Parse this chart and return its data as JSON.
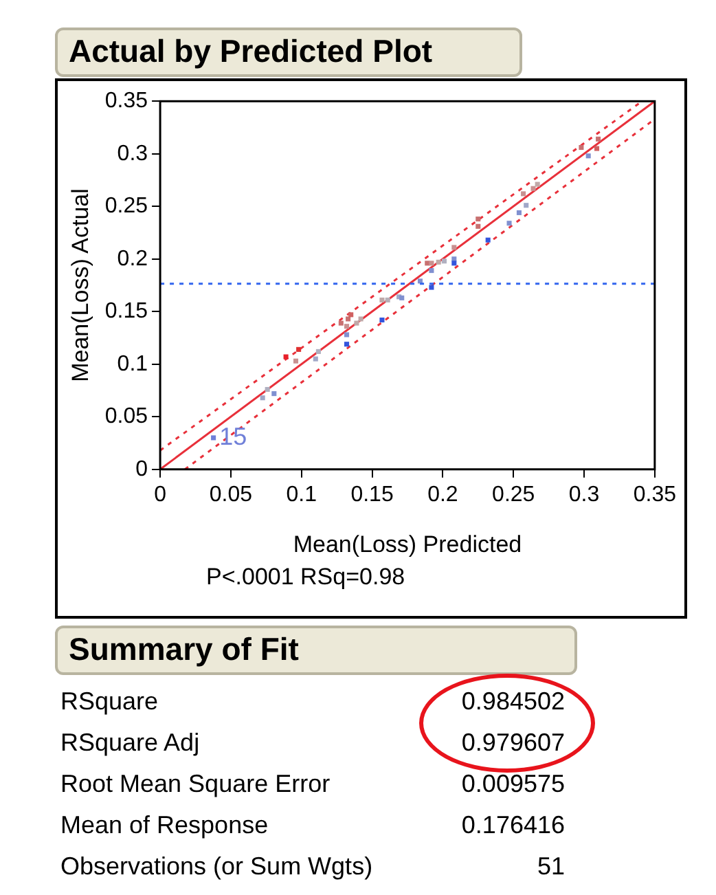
{
  "chart_data": {
    "type": "scatter",
    "title": "Actual by Predicted Plot",
    "xlabel": "Mean(Loss) Predicted",
    "ylabel": "Mean(Loss) Actual",
    "xlim": [
      0,
      0.35
    ],
    "ylim": [
      0,
      0.35
    ],
    "xticks": [
      0,
      0.05,
      0.1,
      0.15,
      0.2,
      0.25,
      0.3,
      0.35
    ],
    "yticks": [
      0,
      0.05,
      0.1,
      0.15,
      0.2,
      0.25,
      0.3,
      0.35
    ],
    "grid": false,
    "legend": false,
    "marker": "square",
    "series": [
      {
        "type": "scatter",
        "x": [
          0.0377,
          0.0725,
          0.0759,
          0.0806,
          0.089,
          0.096,
          0.098,
          0.11,
          0.112,
          0.128,
          0.132,
          0.133,
          0.135,
          0.132,
          0.132,
          0.139,
          0.142,
          0.157,
          0.157,
          0.161,
          0.169,
          0.171,
          0.184,
          0.192,
          0.192,
          0.189,
          0.192,
          0.197,
          0.201,
          0.208,
          0.208,
          0.208,
          0.225,
          0.225,
          0.232,
          0.247,
          0.254,
          0.259,
          0.257,
          0.264,
          0.267,
          0.298,
          0.303,
          0.31,
          0.309
        ],
        "values": [
          0.03,
          0.068,
          0.076,
          0.072,
          0.107,
          0.103,
          0.114,
          0.105,
          0.112,
          0.139,
          0.136,
          0.143,
          0.147,
          0.128,
          0.119,
          0.139,
          0.143,
          0.142,
          0.161,
          0.161,
          0.164,
          0.163,
          0.179,
          0.173,
          0.189,
          0.196,
          0.196,
          0.197,
          0.198,
          0.211,
          0.2,
          0.196,
          0.238,
          0.231,
          0.218,
          0.234,
          0.244,
          0.251,
          0.262,
          0.267,
          0.271,
          0.306,
          0.298,
          0.314,
          0.305
        ],
        "colors": [
          "#6f7fd8",
          "#a0a8c8",
          "#b0b0c0",
          "#8090d0",
          "#e8202a",
          "#c89090",
          "#e03030",
          "#a0a8c8",
          "#b0b0c0",
          "#c87070",
          "#c89090",
          "#c87070",
          "#d06060",
          "#8090d0",
          "#3355dd",
          "#c0a8a8",
          "#c0a8a8",
          "#3355dd",
          "#c0a8a8",
          "#b8b0b8",
          "#a0a8c8",
          "#8090d0",
          "#8090d0",
          "#3355dd",
          "#8090d0",
          "#c87070",
          "#c89090",
          "#c0a8a8",
          "#b0b0c0",
          "#c89090",
          "#8090d0",
          "#3355dd",
          "#c87070",
          "#c87070",
          "#3355dd",
          "#8090d0",
          "#8090d0",
          "#a0a8c8",
          "#c89090",
          "#c89090",
          "#c0a8a8",
          "#c87070",
          "#8090d0",
          "#c87070",
          "#d06060"
        ]
      },
      {
        "type": "line",
        "x": [
          0,
          0.35
        ],
        "values": [
          0,
          0.35
        ],
        "color": "#e8303a",
        "line_style": "solid",
        "marker": "none"
      },
      {
        "type": "line",
        "x": [
          0,
          0.341
        ],
        "values": [
          0.018,
          0.35
        ],
        "color": "#e8303a",
        "line_style": "dotted",
        "marker": "none"
      },
      {
        "type": "line",
        "x": [
          0.0175,
          0.35
        ],
        "values": [
          0,
          0.333
        ],
        "color": "#e8303a",
        "line_style": "dotted",
        "marker": "none"
      }
    ],
    "ref_lines": [
      {
        "axis": "y",
        "value": 0.176416,
        "color": "#3366ee",
        "line_style": "dotted"
      }
    ],
    "annotations": [
      {
        "text": "15",
        "x": 0.038,
        "y": 0.03
      },
      "P<.0001 RSq=0.98",
      "Summary of Fit",
      "RSquare",
      "0.984502",
      "RSquare Adj",
      "0.979607",
      "Root Mean Square Error",
      "0.009575",
      "Mean of Response",
      "0.176416",
      "Observations (or Sum Wgts)",
      "51"
    ]
  }
}
